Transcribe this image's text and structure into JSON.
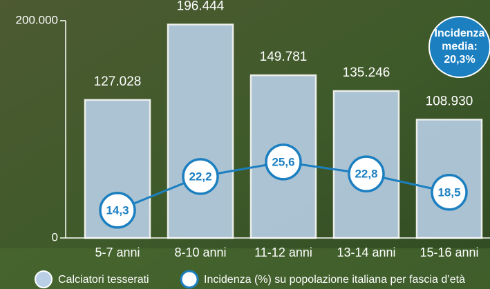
{
  "chart_data": {
    "type": "bar",
    "categories": [
      "5-7 anni",
      "8-10 anni",
      "11-12 anni",
      "13-14 anni",
      "15-16 anni"
    ],
    "series": [
      {
        "name": "Calciatori tesserati",
        "type": "bar",
        "color": "#b8cfe6",
        "values": [
          127028,
          196444,
          149781,
          135246,
          108930
        ],
        "value_labels": [
          "127.028",
          "196.444",
          "149.781",
          "135.246",
          "108.930"
        ]
      },
      {
        "name": "Incidenza (%) su popolazione italiana per fascia d’età",
        "type": "line",
        "axis": "y2",
        "color": "#1b7fc0",
        "values": [
          14.3,
          22.2,
          25.6,
          22.8,
          18.5
        ],
        "value_labels": [
          "14,3",
          "22,2",
          "25,6",
          "22,8",
          "18,5"
        ]
      }
    ],
    "ylim": [
      0,
      200000
    ],
    "yticks": [
      0,
      {
        "value": 200000,
        "label": "200.000"
      }
    ],
    "y2lim": [
      7.8,
      58.7
    ],
    "annotation": [
      "Incidenza",
      "media:",
      "20,3%"
    ]
  }
}
